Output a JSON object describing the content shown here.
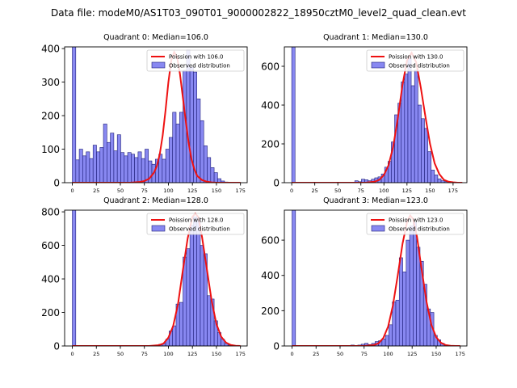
{
  "figure": {
    "suptitle": "Data file: modeM0/AS1T03_090T01_9000002822_18950cztM0_level2_quad_clean.evt"
  },
  "colors": {
    "bar_fill": "#7b7bf0",
    "bar_edge": "#1f1f7a",
    "poisson_line": "#ee1111",
    "axes": "#000000"
  },
  "chart_data": [
    {
      "type": "bar",
      "title": "Quadrant 0: Median=106.0",
      "legend": {
        "position": "top-right",
        "line_label": "Poission with 106.0",
        "bar_label": "Observed distribution"
      },
      "xlim": [
        -8,
        182
      ],
      "ylim": [
        0,
        405
      ],
      "xticks": [
        0,
        25,
        50,
        75,
        100,
        125,
        150,
        175
      ],
      "yticks": [
        0,
        100,
        200,
        300,
        400
      ],
      "bin_width": 3.6,
      "bins": [
        [
          0,
          405
        ],
        [
          3.6,
          68
        ],
        [
          7.2,
          100
        ],
        [
          10.8,
          80
        ],
        [
          14.4,
          92
        ],
        [
          18,
          72
        ],
        [
          21.6,
          112
        ],
        [
          25.2,
          92
        ],
        [
          28.8,
          105
        ],
        [
          32.4,
          175
        ],
        [
          36,
          120
        ],
        [
          39.6,
          148
        ],
        [
          43.2,
          95
        ],
        [
          46.8,
          143
        ],
        [
          50.4,
          90
        ],
        [
          54,
          80
        ],
        [
          57.6,
          90
        ],
        [
          61.2,
          85
        ],
        [
          64.8,
          75
        ],
        [
          68.4,
          92
        ],
        [
          72,
          72
        ],
        [
          75.6,
          100
        ],
        [
          79.2,
          65
        ],
        [
          82.8,
          55
        ],
        [
          86.4,
          70
        ],
        [
          90,
          85
        ],
        [
          93.6,
          70
        ],
        [
          97.2,
          100
        ],
        [
          100.8,
          135
        ],
        [
          104.4,
          210
        ],
        [
          108,
          175
        ],
        [
          111.6,
          210
        ],
        [
          115.2,
          335
        ],
        [
          118.8,
          395
        ],
        [
          122.4,
          345
        ],
        [
          126,
          330
        ],
        [
          129.6,
          250
        ],
        [
          133.2,
          185
        ],
        [
          136.8,
          110
        ],
        [
          140.4,
          75
        ],
        [
          144,
          45
        ],
        [
          147.6,
          30
        ],
        [
          151.2,
          12
        ],
        [
          154.8,
          5
        ],
        [
          158.4,
          2
        ],
        [
          162,
          1
        ]
      ],
      "poisson_curve": {
        "x": [
          0,
          60,
          70,
          75,
          80,
          85,
          88,
          91,
          94,
          97,
          100,
          103,
          106,
          109,
          112,
          115,
          118,
          121,
          124,
          127,
          130,
          135,
          140,
          145,
          150,
          155,
          160,
          165,
          170,
          175
        ],
        "y": [
          0,
          0,
          2,
          5,
          12,
          30,
          50,
          85,
          140,
          215,
          300,
          365,
          390,
          375,
          325,
          255,
          185,
          120,
          70,
          40,
          20,
          8,
          3,
          1,
          0,
          0,
          0,
          0,
          0,
          0
        ]
      }
    },
    {
      "type": "bar",
      "title": "Quadrant 1: Median=130.0",
      "legend": {
        "position": "top-right",
        "line_label": "Poission with 130.0",
        "bar_label": "Observed distribution"
      },
      "xlim": [
        -8,
        190
      ],
      "ylim": [
        0,
        700
      ],
      "xticks": [
        0,
        25,
        50,
        75,
        100,
        125,
        150,
        175
      ],
      "yticks": [
        0,
        200,
        400,
        600
      ],
      "bin_width": 3.6,
      "bins": [
        [
          0,
          700
        ],
        [
          3.6,
          0
        ],
        [
          7.2,
          0
        ],
        [
          10.8,
          0
        ],
        [
          14.4,
          0
        ],
        [
          18,
          0
        ],
        [
          21.6,
          0
        ],
        [
          25.2,
          0
        ],
        [
          28.8,
          0
        ],
        [
          32.4,
          0
        ],
        [
          36,
          0
        ],
        [
          39.6,
          0
        ],
        [
          43.2,
          0
        ],
        [
          46.8,
          0
        ],
        [
          50.4,
          0
        ],
        [
          54,
          0
        ],
        [
          57.6,
          2
        ],
        [
          61.2,
          0
        ],
        [
          64.8,
          0
        ],
        [
          68.4,
          10
        ],
        [
          72,
          5
        ],
        [
          75.6,
          18
        ],
        [
          79.2,
          15
        ],
        [
          82.8,
          10
        ],
        [
          86.4,
          18
        ],
        [
          90,
          25
        ],
        [
          93.6,
          30
        ],
        [
          97.2,
          45
        ],
        [
          100.8,
          80
        ],
        [
          104.4,
          110
        ],
        [
          108,
          210
        ],
        [
          111.6,
          350
        ],
        [
          115.2,
          410
        ],
        [
          118.8,
          520
        ],
        [
          122.4,
          560
        ],
        [
          126,
          640
        ],
        [
          129.6,
          500
        ],
        [
          133.2,
          580
        ],
        [
          136.8,
          400
        ],
        [
          140.4,
          330
        ],
        [
          144,
          280
        ],
        [
          147.6,
          160
        ],
        [
          151.2,
          65
        ],
        [
          154.8,
          40
        ],
        [
          158.4,
          20
        ],
        [
          162,
          10
        ],
        [
          165.6,
          5
        ],
        [
          169.2,
          2
        ]
      ],
      "poisson_curve": {
        "x": [
          0,
          80,
          90,
          95,
          100,
          105,
          110,
          115,
          120,
          125,
          130,
          135,
          140,
          145,
          150,
          155,
          160,
          165,
          170,
          175,
          180,
          185
        ],
        "y": [
          0,
          0,
          5,
          15,
          40,
          90,
          185,
          330,
          500,
          630,
          670,
          620,
          490,
          340,
          200,
          100,
          45,
          15,
          5,
          2,
          0,
          0
        ]
      }
    },
    {
      "type": "bar",
      "title": "Quadrant 2: Median=128.0",
      "legend": {
        "position": "top-right",
        "line_label": "Poission with 128.0",
        "bar_label": "Observed distribution"
      },
      "xlim": [
        -8,
        182
      ],
      "ylim": [
        0,
        810
      ],
      "xticks": [
        0,
        25,
        50,
        75,
        100,
        125,
        150,
        175
      ],
      "yticks": [
        0,
        200,
        400,
        600,
        800
      ],
      "bin_width": 3.6,
      "bins": [
        [
          0,
          810
        ],
        [
          3.6,
          0
        ],
        [
          7.2,
          0
        ],
        [
          10.8,
          0
        ],
        [
          14.4,
          0
        ],
        [
          18,
          0
        ],
        [
          21.6,
          0
        ],
        [
          25.2,
          0
        ],
        [
          28.8,
          0
        ],
        [
          32.4,
          0
        ],
        [
          36,
          0
        ],
        [
          39.6,
          0
        ],
        [
          43.2,
          0
        ],
        [
          46.8,
          0
        ],
        [
          50.4,
          0
        ],
        [
          54,
          0
        ],
        [
          57.6,
          0
        ],
        [
          61.2,
          0
        ],
        [
          64.8,
          0
        ],
        [
          68.4,
          0
        ],
        [
          72,
          0
        ],
        [
          75.6,
          0
        ],
        [
          79.2,
          0
        ],
        [
          82.8,
          0
        ],
        [
          86.4,
          2
        ],
        [
          90,
          10
        ],
        [
          93.6,
          15
        ],
        [
          97.2,
          40
        ],
        [
          100.8,
          90
        ],
        [
          104.4,
          120
        ],
        [
          108,
          250
        ],
        [
          111.6,
          260
        ],
        [
          115.2,
          530
        ],
        [
          118.8,
          580
        ],
        [
          122.4,
          720
        ],
        [
          126,
          770
        ],
        [
          129.6,
          760
        ],
        [
          133.2,
          600
        ],
        [
          136.8,
          550
        ],
        [
          140.4,
          300
        ],
        [
          144,
          280
        ],
        [
          147.6,
          150
        ],
        [
          151.2,
          80
        ],
        [
          154.8,
          40
        ],
        [
          158.4,
          15
        ],
        [
          162,
          5
        ],
        [
          165.6,
          2
        ]
      ],
      "poisson_curve": {
        "x": [
          0,
          80,
          90,
          95,
          100,
          105,
          110,
          115,
          120,
          125,
          128,
          131,
          135,
          140,
          145,
          150,
          155,
          160,
          165,
          170,
          175
        ],
        "y": [
          0,
          0,
          5,
          15,
          50,
          120,
          250,
          450,
          640,
          770,
          790,
          770,
          650,
          460,
          270,
          130,
          55,
          20,
          6,
          1,
          0
        ]
      }
    },
    {
      "type": "bar",
      "title": "Quadrant 3: Median=123.0",
      "legend": {
        "position": "top-right",
        "line_label": "Poission with 123.0",
        "bar_label": "Observed distribution"
      },
      "xlim": [
        -8,
        182
      ],
      "ylim": [
        0,
        770
      ],
      "xticks": [
        0,
        25,
        50,
        75,
        100,
        125,
        150,
        175
      ],
      "yticks": [
        0,
        200,
        400,
        600
      ],
      "bin_width": 3.6,
      "bins": [
        [
          0,
          770
        ],
        [
          3.6,
          0
        ],
        [
          7.2,
          0
        ],
        [
          10.8,
          0
        ],
        [
          14.4,
          0
        ],
        [
          18,
          0
        ],
        [
          21.6,
          0
        ],
        [
          25.2,
          0
        ],
        [
          28.8,
          0
        ],
        [
          32.4,
          0
        ],
        [
          36,
          0
        ],
        [
          39.6,
          0
        ],
        [
          43.2,
          0
        ],
        [
          46.8,
          0
        ],
        [
          50.4,
          2
        ],
        [
          54,
          0
        ],
        [
          57.6,
          0
        ],
        [
          61.2,
          5
        ],
        [
          64.8,
          0
        ],
        [
          68.4,
          5
        ],
        [
          72,
          10
        ],
        [
          75.6,
          15
        ],
        [
          79.2,
          8
        ],
        [
          82.8,
          15
        ],
        [
          86.4,
          25
        ],
        [
          90,
          30
        ],
        [
          93.6,
          40
        ],
        [
          97.2,
          60
        ],
        [
          100.8,
          120
        ],
        [
          104.4,
          250
        ],
        [
          108,
          260
        ],
        [
          111.6,
          500
        ],
        [
          115.2,
          420
        ],
        [
          118.8,
          600
        ],
        [
          122.4,
          680
        ],
        [
          126,
          700
        ],
        [
          129.6,
          560
        ],
        [
          133.2,
          480
        ],
        [
          136.8,
          350
        ],
        [
          140.4,
          210
        ],
        [
          144,
          190
        ],
        [
          147.6,
          60
        ],
        [
          151.2,
          35
        ],
        [
          154.8,
          15
        ],
        [
          158.4,
          5
        ],
        [
          162,
          2
        ]
      ],
      "poisson_curve": {
        "x": [
          0,
          75,
          85,
          90,
          95,
          100,
          105,
          110,
          115,
          120,
          123,
          126,
          130,
          135,
          140,
          145,
          150,
          155,
          160,
          165,
          170,
          175
        ],
        "y": [
          0,
          0,
          5,
          15,
          45,
          110,
          230,
          400,
          580,
          710,
          740,
          720,
          620,
          430,
          250,
          120,
          50,
          18,
          5,
          1,
          0,
          0
        ]
      }
    }
  ]
}
